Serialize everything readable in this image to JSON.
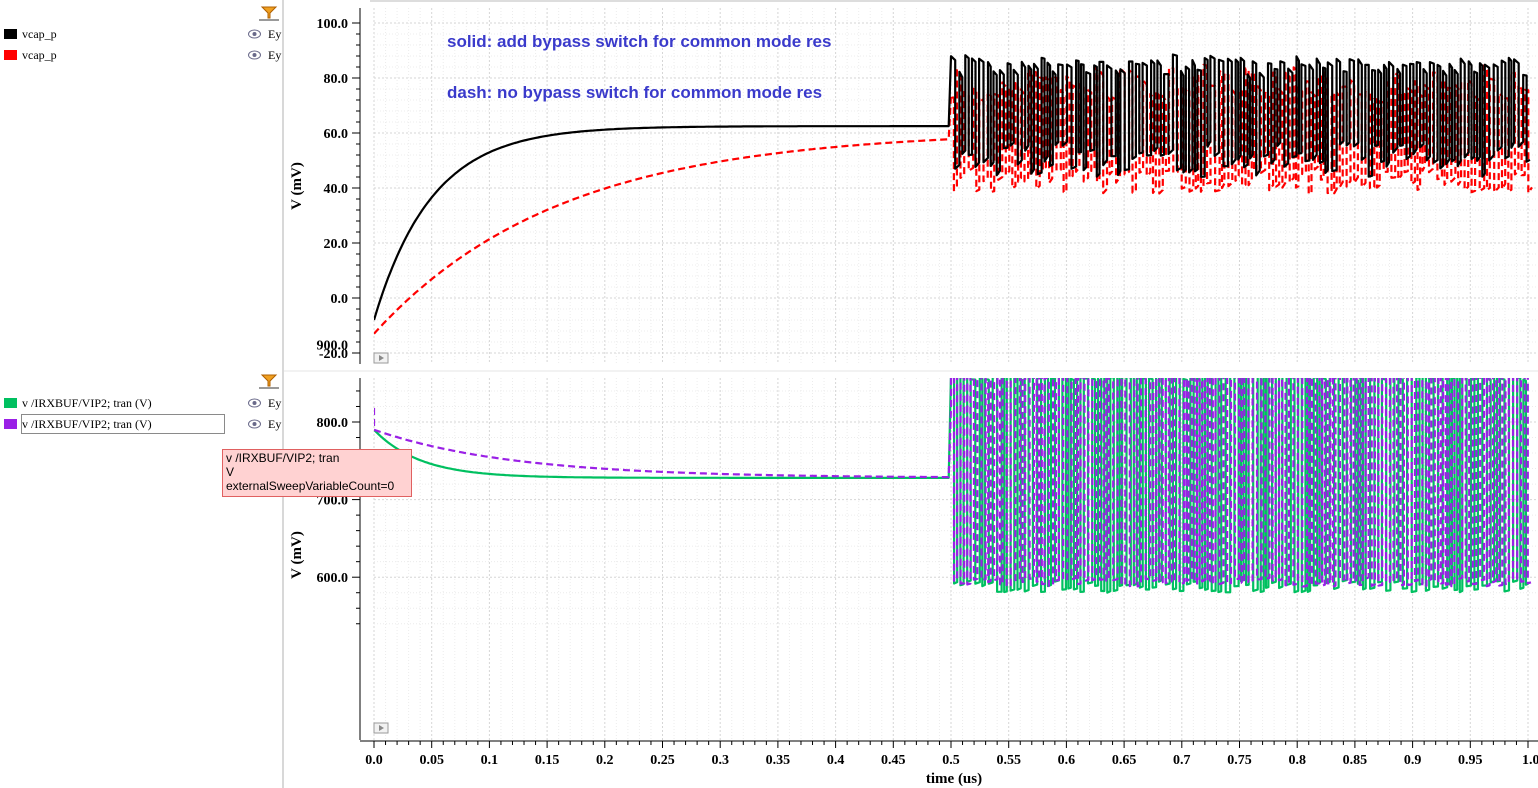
{
  "legends": [
    {
      "items": [
        {
          "label": "vcap_p",
          "color": "#000000",
          "eye": "Ey"
        },
        {
          "label": "vcap_p",
          "color": "#ff0000",
          "eye": "Ey"
        }
      ]
    },
    {
      "items": [
        {
          "label": "v /IRXBUF/VIP2; tran (V)",
          "color": "#00c060",
          "eye": "Ey"
        },
        {
          "label": "v /IRXBUF/VIP2; tran (V)",
          "color": "#9a20e6",
          "eye": "Ey"
        }
      ]
    }
  ],
  "tooltip": {
    "line1": "v /IRXBUF/VIP2; tran",
    "line2": "V",
    "line3": "externalSweepVariableCount=0"
  },
  "chart_data": [
    {
      "type": "line",
      "ylabel": "V (mV)",
      "ylim": [
        -20,
        100
      ],
      "yticks": [
        "100.0",
        "80.0",
        "60.0",
        "40.0",
        "20.0",
        "0.0",
        "-20.0"
      ],
      "grid": true,
      "annotations": [
        "solid: add bypass switch for common mode res",
        "dash: no bypass switch for common mode res"
      ],
      "series": [
        {
          "name": "vcap_p",
          "color": "#000000",
          "style": "solid",
          "settle": {
            "start": -8,
            "final": 62.5,
            "tau": 0.05
          },
          "switching": {
            "high": [
              82,
              88
            ],
            "low": [
              44,
              56
            ]
          }
        },
        {
          "name": "vcap_p",
          "color": "#ff0000",
          "style": "dashed",
          "settle": {
            "start": -13,
            "final": 61,
            "tau": 0.16
          },
          "switching": {
            "high": [
              72,
              84
            ],
            "low": [
              38,
              47
            ]
          }
        }
      ]
    },
    {
      "type": "line",
      "ylabel": "V (mV)",
      "xlabel": "time (us)",
      "xlim": [
        0,
        1.0
      ],
      "xticks": [
        "0.0",
        "0.05",
        "0.1",
        "0.15",
        "0.2",
        "0.25",
        "0.3",
        "0.35",
        "0.4",
        "0.45",
        "0.5",
        "0.55",
        "0.6",
        "0.65",
        "0.7",
        "0.75",
        "0.8",
        "0.85",
        "0.9",
        "0.95",
        "1.0"
      ],
      "ylim": [
        540,
        970
      ],
      "yticks": [
        "900.0",
        "800.0",
        "700.0",
        "600.0"
      ],
      "grid": true,
      "series": [
        {
          "name": "v /IRXBUF/VIP2; tran (V)",
          "color": "#00c060",
          "style": "solid",
          "settle": {
            "start": 790,
            "final": 728,
            "tau": 0.04
          },
          "switching": {
            "high": [
              855,
              865
            ],
            "low": [
              580,
              595
            ]
          }
        },
        {
          "name": "v /IRXBUF/VIP2; tran (V)",
          "color": "#9a20e6",
          "style": "dashed",
          "settle": {
            "start": 790,
            "final": 728,
            "tau": 0.12
          },
          "switching": {
            "high": [
              858,
              868
            ],
            "low": [
              588,
              598
            ]
          }
        }
      ]
    }
  ]
}
